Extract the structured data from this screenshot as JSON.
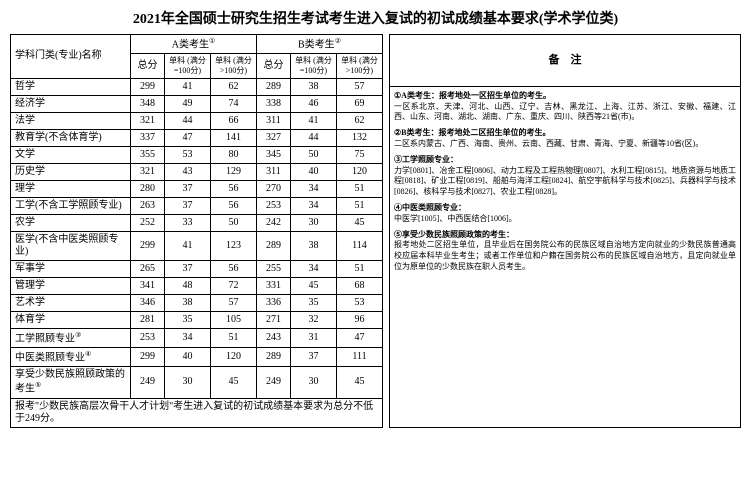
{
  "title": "2021年全国硕士研究生招生考试考生进入复试的初试成绩基本要求(学术学位类)",
  "headers": {
    "subject": "学科门类(专业)名称",
    "groupA": "A类考生",
    "groupB": "B类考生",
    "total": "总分",
    "single100": "单科 (满分=100分)",
    "singleOver100": "单科 (满分>100分)",
    "notes": "备　注",
    "sup1": "①",
    "sup2": "②",
    "sup3": "③",
    "sup4": "④",
    "sup5": "⑤"
  },
  "rows": [
    {
      "name": "哲学",
      "a_total": "299",
      "a_s1": "41",
      "a_s2": "62",
      "b_total": "289",
      "b_s1": "38",
      "b_s2": "57",
      "sup": ""
    },
    {
      "name": "经济学",
      "a_total": "348",
      "a_s1": "49",
      "a_s2": "74",
      "b_total": "338",
      "b_s1": "46",
      "b_s2": "69",
      "sup": ""
    },
    {
      "name": "法学",
      "a_total": "321",
      "a_s1": "44",
      "a_s2": "66",
      "b_total": "311",
      "b_s1": "41",
      "b_s2": "62",
      "sup": ""
    },
    {
      "name": "教育学(不含体育学)",
      "a_total": "337",
      "a_s1": "47",
      "a_s2": "141",
      "b_total": "327",
      "b_s1": "44",
      "b_s2": "132",
      "sup": ""
    },
    {
      "name": "文学",
      "a_total": "355",
      "a_s1": "53",
      "a_s2": "80",
      "b_total": "345",
      "b_s1": "50",
      "b_s2": "75",
      "sup": ""
    },
    {
      "name": "历史学",
      "a_total": "321",
      "a_s1": "43",
      "a_s2": "129",
      "b_total": "311",
      "b_s1": "40",
      "b_s2": "120",
      "sup": ""
    },
    {
      "name": "理学",
      "a_total": "280",
      "a_s1": "37",
      "a_s2": "56",
      "b_total": "270",
      "b_s1": "34",
      "b_s2": "51",
      "sup": ""
    },
    {
      "name": "工学(不含工学照顾专业)",
      "a_total": "263",
      "a_s1": "37",
      "a_s2": "56",
      "b_total": "253",
      "b_s1": "34",
      "b_s2": "51",
      "sup": ""
    },
    {
      "name": "农学",
      "a_total": "252",
      "a_s1": "33",
      "a_s2": "50",
      "b_total": "242",
      "b_s1": "30",
      "b_s2": "45",
      "sup": ""
    },
    {
      "name": "医学(不含中医类照顾专业)",
      "a_total": "299",
      "a_s1": "41",
      "a_s2": "123",
      "b_total": "289",
      "b_s1": "38",
      "b_s2": "114",
      "sup": ""
    },
    {
      "name": "军事学",
      "a_total": "265",
      "a_s1": "37",
      "a_s2": "56",
      "b_total": "255",
      "b_s1": "34",
      "b_s2": "51",
      "sup": ""
    },
    {
      "name": "管理学",
      "a_total": "341",
      "a_s1": "48",
      "a_s2": "72",
      "b_total": "331",
      "b_s1": "45",
      "b_s2": "68",
      "sup": ""
    },
    {
      "name": "艺术学",
      "a_total": "346",
      "a_s1": "38",
      "a_s2": "57",
      "b_total": "336",
      "b_s1": "35",
      "b_s2": "53",
      "sup": ""
    },
    {
      "name": "体育学",
      "a_total": "281",
      "a_s1": "35",
      "a_s2": "105",
      "b_total": "271",
      "b_s1": "32",
      "b_s2": "96",
      "sup": ""
    },
    {
      "name": "工学照顾专业",
      "a_total": "253",
      "a_s1": "34",
      "a_s2": "51",
      "b_total": "243",
      "b_s1": "31",
      "b_s2": "47",
      "sup": "③"
    },
    {
      "name": "中医类照顾专业",
      "a_total": "299",
      "a_s1": "40",
      "a_s2": "120",
      "b_total": "289",
      "b_s1": "37",
      "b_s2": "111",
      "sup": "④"
    },
    {
      "name": "享受少数民族照顾政策的考生",
      "a_total": "249",
      "a_s1": "30",
      "a_s2": "45",
      "b_total": "249",
      "b_s1": "30",
      "b_s2": "45",
      "sup": "⑤"
    }
  ],
  "footer": "报考\"少数民族高层次骨干人才计划\"考生进入复试的初试成绩基本要求为总分不低于249分。",
  "notes": {
    "n1_title": "①A类考生：报考地处一区招生单位的考生。",
    "n1_body": "一区系北京、天津、河北、山西、辽宁、吉林、黑龙江、上海、江苏、浙江、安徽、福建、江西、山东、河南、湖北、湖南、广东、重庆、四川、陕西等21省(市)。",
    "n2_title": "②B类考生：报考地处二区招生单位的考生。",
    "n2_body": "二区系内蒙古、广西、海南、贵州、云南、西藏、甘肃、青海、宁夏、新疆等10省(区)。",
    "n3_title": "③工学照顾专业：",
    "n3_body": "力学[0801]、冶金工程[0806]、动力工程及工程热物理[0807]、水利工程[0815]、地质资源与地质工程[0818]、矿业工程[0819]、船舶与海洋工程[0824]、航空宇航科学与技术[0825]、兵器科学与技术[0826]、核科学与技术[0827]、农业工程[0828]。",
    "n4_title": "④中医类照顾专业：",
    "n4_body": "中医学[1005]、中西医结合[1006]。",
    "n5_title": "⑤享受少数民族照顾政策的考生：",
    "n5_body": "报考地处二区招生单位，且毕业后在国务院公布的民族区域自治地方定向就业的少数民族普通高校应届本科毕业生考生；或者工作单位和户籍在国务院公布的民族区域自治地方，且定向就业单位为原单位的少数民族在职人员考生。"
  }
}
